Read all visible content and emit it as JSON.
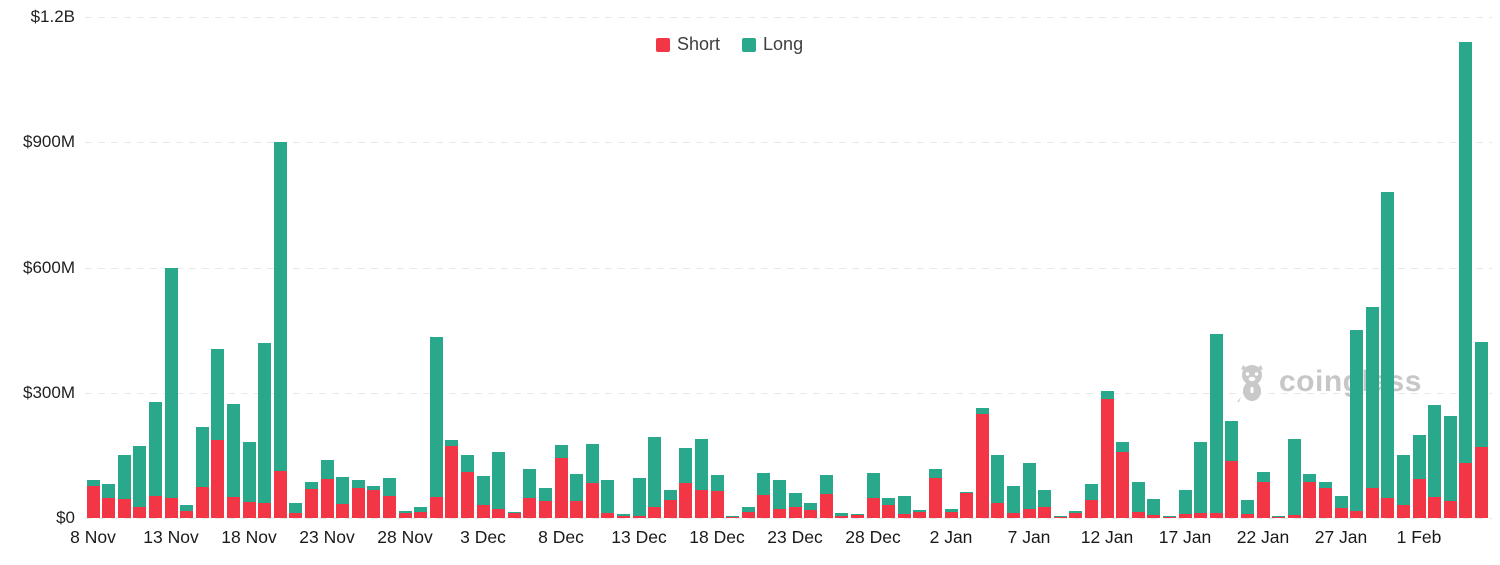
{
  "legend": {
    "short_label": "Short",
    "long_label": "Long"
  },
  "watermark": {
    "text": "coinglass"
  },
  "colors": {
    "short": "#f23645",
    "long": "#2aa88c",
    "grid": "#e9e9e9",
    "axis_text": "#1f1f1f",
    "legend_text": "#3f3f3f",
    "watermark_gray": "#c7c7c7"
  },
  "chart_data": {
    "type": "bar",
    "stacked": true,
    "values_unit": "USD millions",
    "ylim": [
      0,
      1200
    ],
    "y_ticks": [
      {
        "value": 0,
        "label": "$0"
      },
      {
        "value": 300,
        "label": "$300M"
      },
      {
        "value": 600,
        "label": "$600M"
      },
      {
        "value": 900,
        "label": "$900M"
      },
      {
        "value": 1200,
        "label": "$1.2B"
      }
    ],
    "x_tick_step": 5,
    "legend_position": "top-center",
    "grid": "horizontal-dashed",
    "categories": [
      "8 Nov",
      "9 Nov",
      "10 Nov",
      "11 Nov",
      "12 Nov",
      "13 Nov",
      "14 Nov",
      "15 Nov",
      "16 Nov",
      "17 Nov",
      "18 Nov",
      "19 Nov",
      "20 Nov",
      "21 Nov",
      "22 Nov",
      "23 Nov",
      "24 Nov",
      "25 Nov",
      "26 Nov",
      "27 Nov",
      "28 Nov",
      "29 Nov",
      "30 Nov",
      "1 Dec",
      "2 Dec",
      "3 Dec",
      "4 Dec",
      "5 Dec",
      "6 Dec",
      "7 Dec",
      "8 Dec",
      "9 Dec",
      "10 Dec",
      "11 Dec",
      "12 Dec",
      "13 Dec",
      "14 Dec",
      "15 Dec",
      "16 Dec",
      "17 Dec",
      "18 Dec",
      "19 Dec",
      "20 Dec",
      "21 Dec",
      "22 Dec",
      "23 Dec",
      "24 Dec",
      "25 Dec",
      "26 Dec",
      "27 Dec",
      "28 Dec",
      "29 Dec",
      "30 Dec",
      "31 Dec",
      "1 Jan",
      "2 Jan",
      "3 Jan",
      "4 Jan",
      "5 Jan",
      "6 Jan",
      "7 Jan",
      "8 Jan",
      "9 Jan",
      "10 Jan",
      "11 Jan",
      "12 Jan",
      "13 Jan",
      "14 Jan",
      "15 Jan",
      "16 Jan",
      "17 Jan",
      "18 Jan",
      "19 Jan",
      "20 Jan",
      "21 Jan",
      "22 Jan",
      "23 Jan",
      "24 Jan",
      "25 Jan",
      "26 Jan",
      "27 Jan",
      "28 Jan",
      "29 Jan",
      "30 Jan",
      "31 Jan",
      "1 Feb",
      "2 Feb",
      "3 Feb",
      "4 Feb",
      "5 Feb"
    ],
    "series": [
      {
        "name": "Short",
        "values": [
          77,
          47,
          45,
          27,
          53,
          48,
          17,
          75,
          188,
          51,
          39,
          35,
          113,
          12,
          69,
          93,
          33,
          72,
          67,
          52,
          12,
          14,
          51,
          172,
          111,
          31,
          21,
          11,
          47,
          40,
          144,
          40,
          84,
          11,
          5,
          5,
          26,
          43,
          83,
          67,
          65,
          2,
          14,
          55,
          21,
          27,
          19,
          58,
          6,
          7,
          49,
          31,
          9,
          15,
          96,
          15,
          59,
          250,
          35,
          11,
          22,
          27,
          2,
          11,
          43,
          284,
          159,
          14,
          7,
          2,
          9,
          13,
          13,
          136,
          9,
          87,
          3,
          7,
          87,
          72,
          25,
          18,
          73,
          49,
          32,
          93,
          51,
          41,
          133,
          169
        ]
      },
      {
        "name": "Long",
        "values": [
          14,
          34,
          106,
          145,
          224,
          552,
          14,
          142,
          218,
          221,
          142,
          385,
          788,
          23,
          18,
          46,
          65,
          20,
          10,
          44,
          4,
          12,
          382,
          16,
          40,
          69,
          138,
          4,
          70,
          32,
          32,
          65,
          94,
          81,
          4,
          92,
          167,
          24,
          84,
          122,
          38,
          3,
          13,
          54,
          70,
          32,
          16,
          45,
          5,
          3,
          60,
          18,
          44,
          4,
          21,
          6,
          4,
          14,
          115,
          66,
          109,
          40,
          3,
          5,
          38,
          20,
          22,
          73,
          38,
          3,
          58,
          169,
          427,
          96,
          34,
          24,
          2,
          182,
          18,
          15,
          28,
          433,
          432,
          731,
          119,
          105,
          219,
          204,
          1008,
          252
        ]
      }
    ]
  }
}
